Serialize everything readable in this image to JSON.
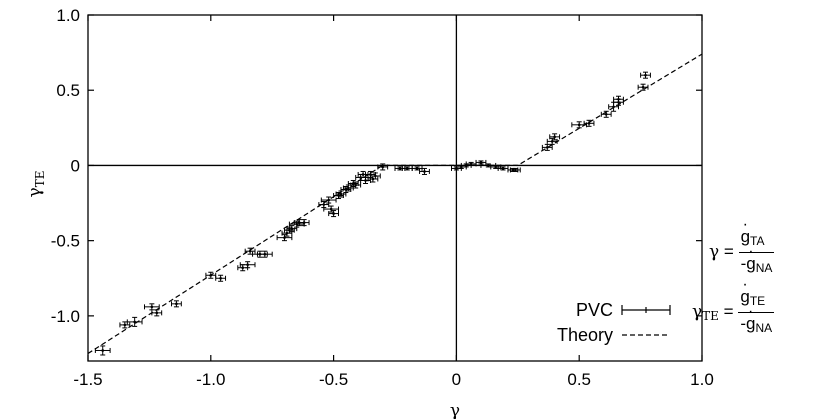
{
  "chart_data": {
    "type": "scatter",
    "xlabel": "γ",
    "ylabel": "γ",
    "ylabel_sub": "TE",
    "xlim": [
      -1.5,
      1.0
    ],
    "ylim": [
      -1.3,
      1.0
    ],
    "xticks": [
      -1.5,
      -1.0,
      -0.5,
      0,
      0.5,
      1.0
    ],
    "xtick_labels": [
      "-1.5",
      "-1.0",
      "-0.5",
      "0",
      "0.5",
      "1.0"
    ],
    "yticks": [
      1.0,
      0.5,
      0,
      -0.5,
      -1.0
    ],
    "ytick_labels": [
      "1.0",
      "0.5",
      "0",
      "-0.5",
      "-1.0"
    ],
    "zero_lines": true,
    "legend_position": "bottom-right",
    "series": [
      {
        "name": "PVC",
        "style": "points-with-errorbars",
        "x": [
          -1.44,
          -1.35,
          -1.31,
          -1.24,
          -1.22,
          -1.14,
          -1.0,
          -0.96,
          -0.87,
          -0.85,
          -0.84,
          -0.8,
          -0.78,
          -0.7,
          -0.69,
          -0.68,
          -0.67,
          -0.65,
          -0.64,
          -0.62,
          -0.54,
          -0.52,
          -0.51,
          -0.5,
          -0.48,
          -0.47,
          -0.45,
          -0.44,
          -0.42,
          -0.41,
          -0.39,
          -0.38,
          -0.37,
          -0.35,
          -0.34,
          -0.33,
          -0.3,
          -0.23,
          -0.2,
          -0.16,
          -0.13,
          0.0,
          0.02,
          0.04,
          0.06,
          0.1,
          0.13,
          0.16,
          0.19,
          0.23,
          0.24,
          0.37,
          0.39,
          0.4,
          0.5,
          0.54,
          0.61,
          0.64,
          0.66,
          0.66,
          0.76,
          0.77
        ],
        "y": [
          -1.23,
          -1.06,
          -1.04,
          -0.94,
          -0.98,
          -0.92,
          -0.73,
          -0.75,
          -0.68,
          -0.66,
          -0.57,
          -0.59,
          -0.59,
          -0.48,
          -0.45,
          -0.43,
          -0.42,
          -0.39,
          -0.38,
          -0.38,
          -0.26,
          -0.23,
          -0.29,
          -0.32,
          -0.2,
          -0.19,
          -0.16,
          -0.15,
          -0.12,
          -0.13,
          -0.08,
          -0.06,
          -0.1,
          -0.06,
          -0.09,
          -0.07,
          -0.01,
          -0.02,
          -0.02,
          -0.02,
          -0.04,
          -0.02,
          -0.01,
          0.0,
          0.01,
          0.02,
          0.0,
          -0.01,
          -0.02,
          -0.03,
          -0.03,
          0.12,
          0.16,
          0.19,
          0.27,
          0.28,
          0.34,
          0.39,
          0.42,
          0.44,
          0.52,
          0.6
        ],
        "xerr": [
          0.03,
          0.02,
          0.03,
          0.03,
          0.02,
          0.02,
          0.02,
          0.02,
          0.02,
          0.03,
          0.02,
          0.03,
          0.03,
          0.03,
          0.02,
          0.02,
          0.02,
          0.03,
          0.02,
          0.02,
          0.02,
          0.03,
          0.03,
          0.02,
          0.02,
          0.02,
          0.02,
          0.02,
          0.02,
          0.02,
          0.02,
          0.02,
          0.02,
          0.02,
          0.02,
          0.02,
          0.02,
          0.02,
          0.02,
          0.02,
          0.02,
          0.02,
          0.02,
          0.02,
          0.02,
          0.02,
          0.03,
          0.02,
          0.02,
          0.02,
          0.02,
          0.02,
          0.02,
          0.02,
          0.03,
          0.02,
          0.02,
          0.02,
          0.02,
          0.02,
          0.02,
          0.02
        ],
        "yerr": [
          0.03,
          0.02,
          0.03,
          0.02,
          0.02,
          0.02,
          0.02,
          0.02,
          0.02,
          0.02,
          0.02,
          0.02,
          0.02,
          0.02,
          0.02,
          0.02,
          0.02,
          0.02,
          0.02,
          0.02,
          0.02,
          0.02,
          0.02,
          0.02,
          0.02,
          0.02,
          0.02,
          0.02,
          0.02,
          0.02,
          0.02,
          0.02,
          0.02,
          0.02,
          0.02,
          0.02,
          0.02,
          0.01,
          0.01,
          0.01,
          0.02,
          0.01,
          0.01,
          0.01,
          0.01,
          0.01,
          0.01,
          0.01,
          0.01,
          0.01,
          0.01,
          0.02,
          0.02,
          0.02,
          0.02,
          0.02,
          0.02,
          0.03,
          0.02,
          0.02,
          0.02,
          0.02
        ]
      },
      {
        "name": "Theory",
        "style": "dashed-line",
        "x": [
          -1.5,
          -0.3,
          0.25,
          1.0
        ],
        "y": [
          -1.25,
          0.0,
          0.0,
          0.74
        ]
      }
    ]
  },
  "formula": {
    "gamma": {
      "lhs": "γ",
      "eq": "=",
      "num_main": "g",
      "num_sub": "TA",
      "den_prefix": "-",
      "den_main": "g",
      "den_sub": "NA"
    },
    "gamma_te": {
      "lhs": "γ",
      "lhs_sub": "TE",
      "eq": "=",
      "num_main": "g",
      "num_sub": "TE",
      "den_prefix": "-",
      "den_main": "g",
      "den_sub": "NA"
    }
  },
  "colors": {
    "ink": "#000000",
    "background": "#ffffff"
  }
}
